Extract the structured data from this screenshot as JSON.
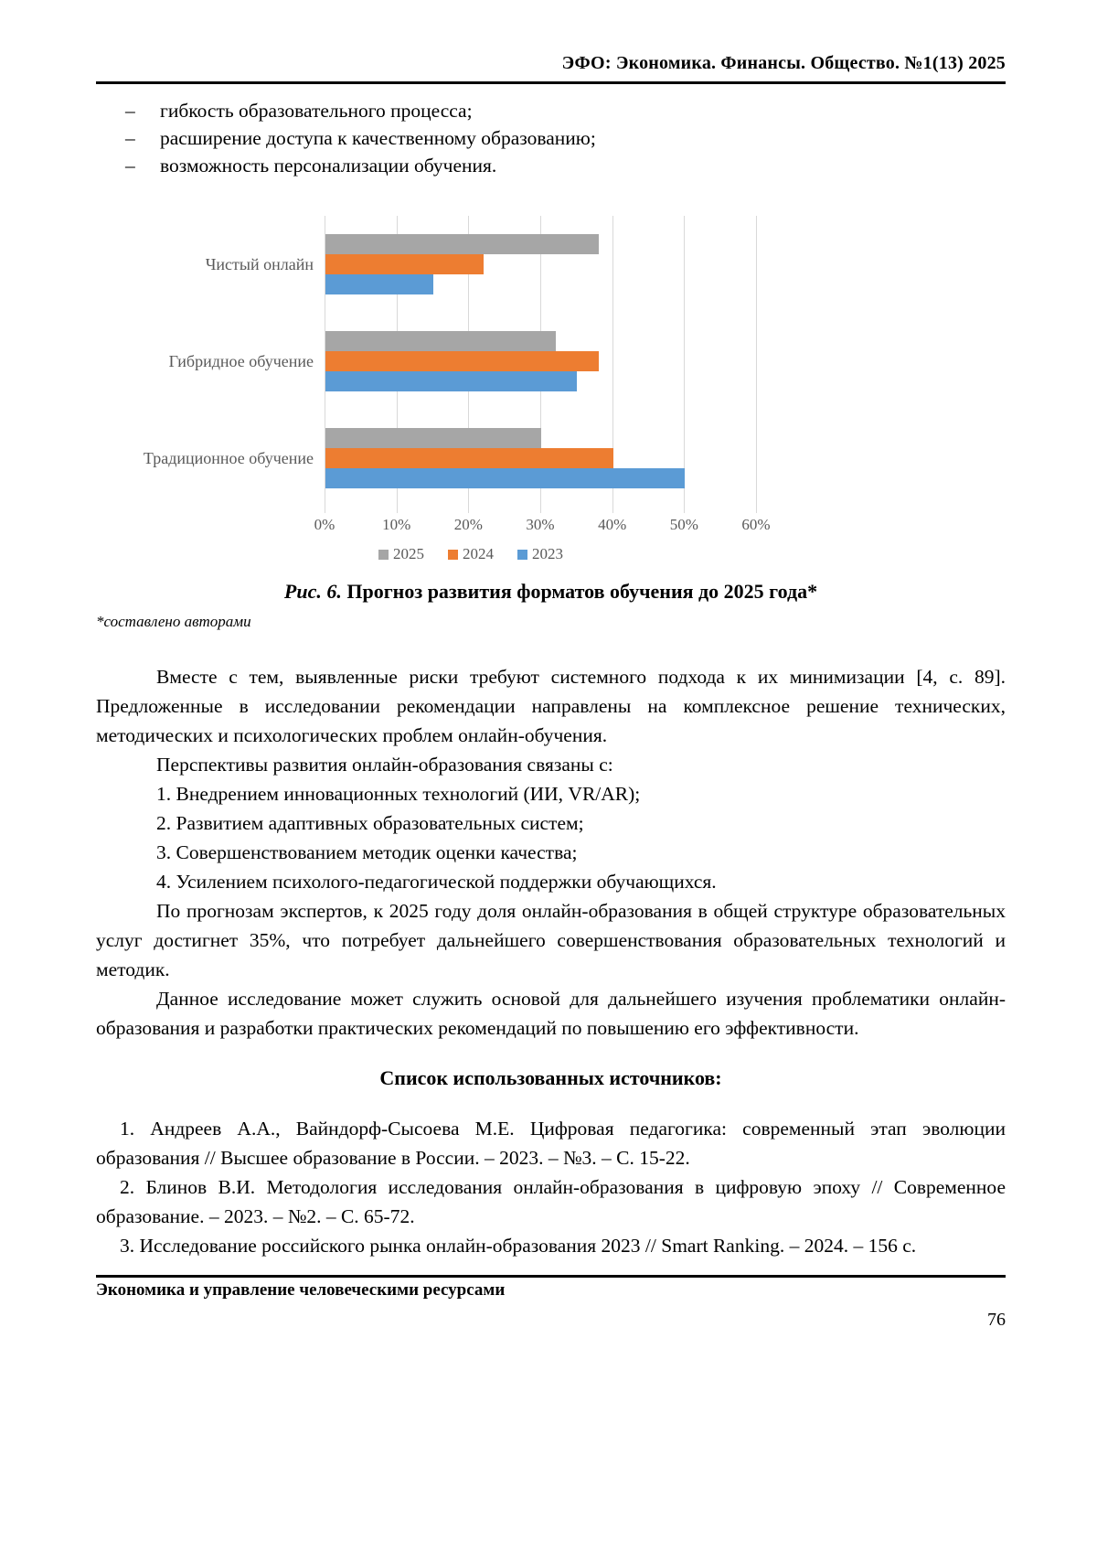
{
  "header": {
    "journal_title": "ЭФО: Экономика. Финансы. Общество. №1(13) 2025"
  },
  "bullets": {
    "marker": "–",
    "items": [
      "гибкость образовательного процесса;",
      "расширение доступа к качественному образованию;",
      "возможность персонализации обучения."
    ]
  },
  "chart_data": {
    "type": "bar",
    "orientation": "horizontal",
    "categories": [
      "Чистый онлайн",
      "Гибридное обучение",
      "Традиционное обучение"
    ],
    "series": [
      {
        "name": "2025",
        "color": "#A6A6A6",
        "values": [
          38,
          32,
          30
        ]
      },
      {
        "name": "2024",
        "color": "#ED7D31",
        "values": [
          22,
          38,
          40
        ]
      },
      {
        "name": "2023",
        "color": "#5B9BD5",
        "values": [
          15,
          35,
          50
        ]
      }
    ],
    "x_axis": {
      "min": 0,
      "max": 60,
      "unit": "%",
      "ticks": [
        "0%",
        "10%",
        "20%",
        "30%",
        "40%",
        "50%",
        "60%"
      ]
    },
    "legend": [
      "2025",
      "2024",
      "2023"
    ],
    "legend_position": "bottom",
    "grid": "vertical",
    "gridline_color": "#d9d9d9",
    "label_color": "#595959",
    "title": ""
  },
  "figure": {
    "caption_label": "Рис. 6.",
    "caption_text": " Прогноз развития форматов обучения до 2025 года*",
    "footnote": "*составлено авторами"
  },
  "paragraphs": {
    "p1": "Вместе с тем, выявленные риски требуют системного подхода к их минимизации [4, с. 89]. Предложенные в исследовании рекомендации направлены на комплексное решение технических, методических и психологических проблем онлайн-обучения.",
    "p2": "Перспективы развития онлайн-образования связаны с:",
    "p3": "По прогнозам экспертов, к 2025 году доля онлайн-образования в общей структуре образовательных услуг достигнет 35%, что потребует дальнейшего совершенствования образовательных технологий и методик.",
    "p4": "Данное исследование может служить основой для дальнейшего изучения проблематики онлайн-образования и разработки практических рекомендаций по повышению его эффективности."
  },
  "numbered_list": [
    "1. Внедрением инновационных технологий (ИИ, VR/AR);",
    "2. Развитием адаптивных образовательных систем;",
    "3. Совершенствованием методик оценки качества;",
    "4. Усилением психолого-педагогической поддержки обучающихся."
  ],
  "sources": {
    "heading": "Список использованных источников:",
    "items": [
      "1. Андреев А.А., Вайндорф-Сысоева М.Е. Цифровая педагогика: современный этап эволюции образования // Высшее образование в России. – 2023. – №3. – С. 15-22.",
      "2. Блинов В.И. Методология исследования онлайн-образования в цифровую эпоху // Современное образование. – 2023. – №2. – С. 65-72.",
      "3. Исследование российского рынка онлайн-образования 2023 // Smart Ranking. – 2024. – 156 с."
    ]
  },
  "footer": {
    "section_title": "Экономика и управление человеческими ресурсами",
    "page_number": "76"
  }
}
